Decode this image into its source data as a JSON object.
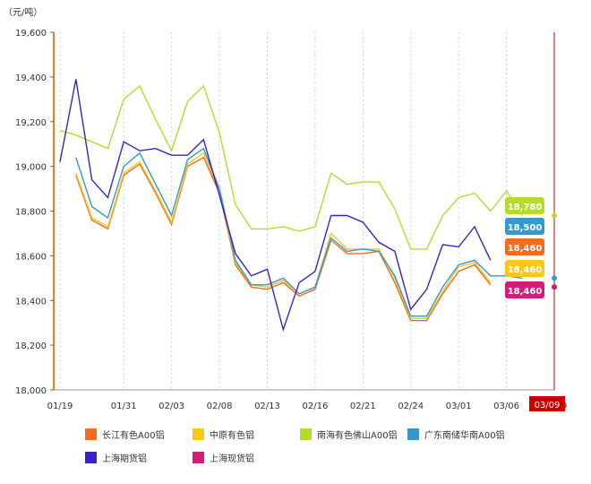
{
  "chart_data": {
    "type": "line",
    "unit_label": "（元/吨）",
    "ylim": [
      18000,
      19600
    ],
    "yticks": [
      18000,
      18200,
      18400,
      18600,
      18800,
      19000,
      19200,
      19400,
      19600
    ],
    "ytick_labels": [
      "18,000",
      "18,200",
      "18,400",
      "18,600",
      "18,800",
      "19,000",
      "19,200",
      "19,400",
      "19,600"
    ],
    "x_positions": [
      "01/19",
      "01/20",
      "01/21",
      "01/30",
      "01/31",
      "02/01",
      "02/02",
      "02/03",
      "02/06",
      "02/07",
      "02/08",
      "02/09",
      "02/10",
      "02/13",
      "02/14",
      "02/15",
      "02/16",
      "02/17",
      "02/20",
      "02/21",
      "02/22",
      "02/23",
      "02/24",
      "02/27",
      "02/28",
      "03/01",
      "03/02",
      "03/03",
      "03/06",
      "03/07",
      "03/08",
      "03/09"
    ],
    "xtick_labels": [
      {
        "index": 0,
        "label": "01/19"
      },
      {
        "index": 4,
        "label": "01/31"
      },
      {
        "index": 7,
        "label": "02/03"
      },
      {
        "index": 10,
        "label": "02/08"
      },
      {
        "index": 13,
        "label": "02/13"
      },
      {
        "index": 16,
        "label": "02/16"
      },
      {
        "index": 19,
        "label": "02/21"
      },
      {
        "index": 22,
        "label": "02/24"
      },
      {
        "index": 25,
        "label": "03/01"
      },
      {
        "index": 28,
        "label": "03/06"
      },
      {
        "index": 31,
        "label": "03/09"
      }
    ],
    "crosshair": {
      "index": 31,
      "label": "03/09"
    },
    "series": [
      {
        "name": "长江有色A00铝",
        "color": "#f06c1e",
        "values": [
          null,
          18960,
          18760,
          18720,
          18960,
          19010,
          18880,
          18740,
          19000,
          19040,
          18880,
          18560,
          18460,
          18450,
          18480,
          18420,
          18450,
          18670,
          18610,
          18610,
          18620,
          18480,
          18310,
          18310,
          18430,
          18530,
          18560,
          18470,
          null,
          null,
          null,
          18460
        ],
        "end_label": "18,460"
      },
      {
        "name": "中原有色铝",
        "color": "#f8c81c",
        "values": [
          null,
          18970,
          18770,
          18730,
          18970,
          19020,
          18890,
          18750,
          19010,
          19060,
          18890,
          18570,
          18470,
          18460,
          18490,
          18430,
          18460,
          18700,
          18630,
          18630,
          18630,
          18500,
          18320,
          18320,
          18440,
          18550,
          18570,
          18480,
          null,
          null,
          null,
          18460
        ],
        "end_label": "18,460"
      },
      {
        "name": "南海有色佛山A00铝",
        "color": "#b5dc2c",
        "values": [
          19160,
          19140,
          19110,
          19080,
          19300,
          19360,
          19210,
          19070,
          19290,
          19360,
          19150,
          18830,
          18720,
          18720,
          18730,
          18710,
          18730,
          18970,
          18920,
          18930,
          18930,
          18810,
          18630,
          18630,
          18780,
          18860,
          18880,
          18800,
          18890,
          18780,
          null,
          18780
        ],
        "end_label": "18,780"
      },
      {
        "name": "广东南储华南A00铝",
        "color": "#2f9ad6",
        "values": [
          null,
          19040,
          18820,
          18770,
          19000,
          19060,
          18920,
          18780,
          19030,
          19080,
          18900,
          18580,
          18470,
          18470,
          18500,
          18430,
          18460,
          18680,
          18620,
          18630,
          18620,
          18510,
          18330,
          18330,
          18460,
          18560,
          18580,
          18510,
          18510,
          18500,
          null,
          18500
        ],
        "end_label": "18,500"
      },
      {
        "name": "上海期货铝",
        "color": "#3d22c3",
        "values": [
          19020,
          19390,
          18940,
          18860,
          19110,
          19070,
          19080,
          19050,
          19050,
          19120,
          18870,
          18610,
          18510,
          18540,
          18270,
          18480,
          18530,
          18780,
          18780,
          18750,
          18660,
          18620,
          18360,
          18450,
          18650,
          18640,
          18730,
          18580,
          null,
          null,
          null,
          null
        ],
        "end_label": ""
      },
      {
        "name": "上海现货铝",
        "color": "#d41c7a",
        "values": [
          null,
          null,
          null,
          null,
          null,
          null,
          null,
          null,
          null,
          null,
          null,
          null,
          null,
          null,
          null,
          null,
          null,
          null,
          null,
          null,
          null,
          null,
          null,
          null,
          null,
          null,
          null,
          null,
          null,
          null,
          null,
          18460
        ],
        "end_label": "18,460"
      }
    ]
  }
}
